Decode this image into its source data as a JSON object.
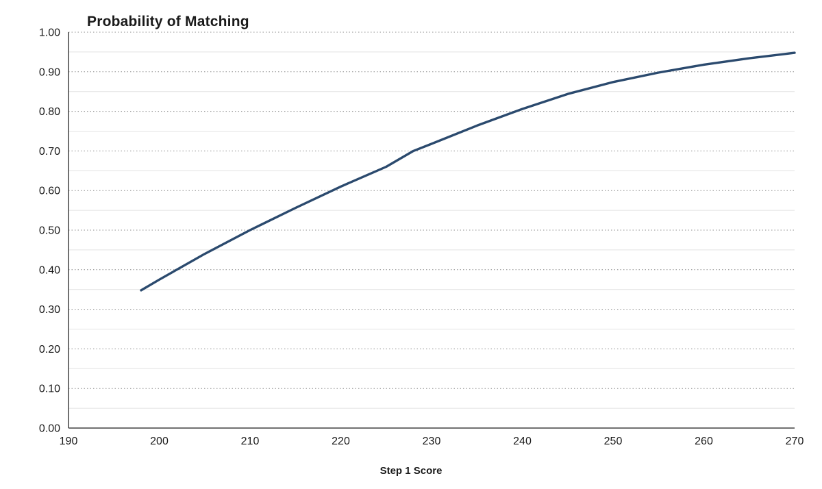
{
  "chart_data": {
    "type": "line",
    "title": "Probability of Matching",
    "xlabel": "Step 1 Score",
    "ylabel": "",
    "xlim": [
      190,
      270
    ],
    "ylim": [
      0.0,
      1.0
    ],
    "x_ticks": [
      190,
      200,
      210,
      220,
      230,
      240,
      250,
      260,
      270
    ],
    "y_ticks": [
      "0.00",
      "0.10",
      "0.20",
      "0.30",
      "0.40",
      "0.50",
      "0.60",
      "0.70",
      "0.80",
      "0.90",
      "1.00"
    ],
    "grid": "horizontal major dotted, horizontal minor light, no vertical gridlines",
    "legend": "none",
    "line_color": "#2b4a6e",
    "axis_color": "#404040",
    "major_grid_color": "#8c8c8c",
    "minor_grid_color": "#e2e2e2",
    "series": [
      {
        "name": "Probability of Matching",
        "points": [
          [
            198,
            0.348
          ],
          [
            200,
            0.375
          ],
          [
            205,
            0.44
          ],
          [
            210,
            0.5
          ],
          [
            215,
            0.556
          ],
          [
            220,
            0.61
          ],
          [
            225,
            0.66
          ],
          [
            228,
            0.7
          ],
          [
            230,
            0.718
          ],
          [
            235,
            0.764
          ],
          [
            240,
            0.806
          ],
          [
            245,
            0.844
          ],
          [
            250,
            0.874
          ],
          [
            255,
            0.898
          ],
          [
            260,
            0.918
          ],
          [
            265,
            0.934
          ],
          [
            270,
            0.948
          ]
        ]
      }
    ]
  }
}
